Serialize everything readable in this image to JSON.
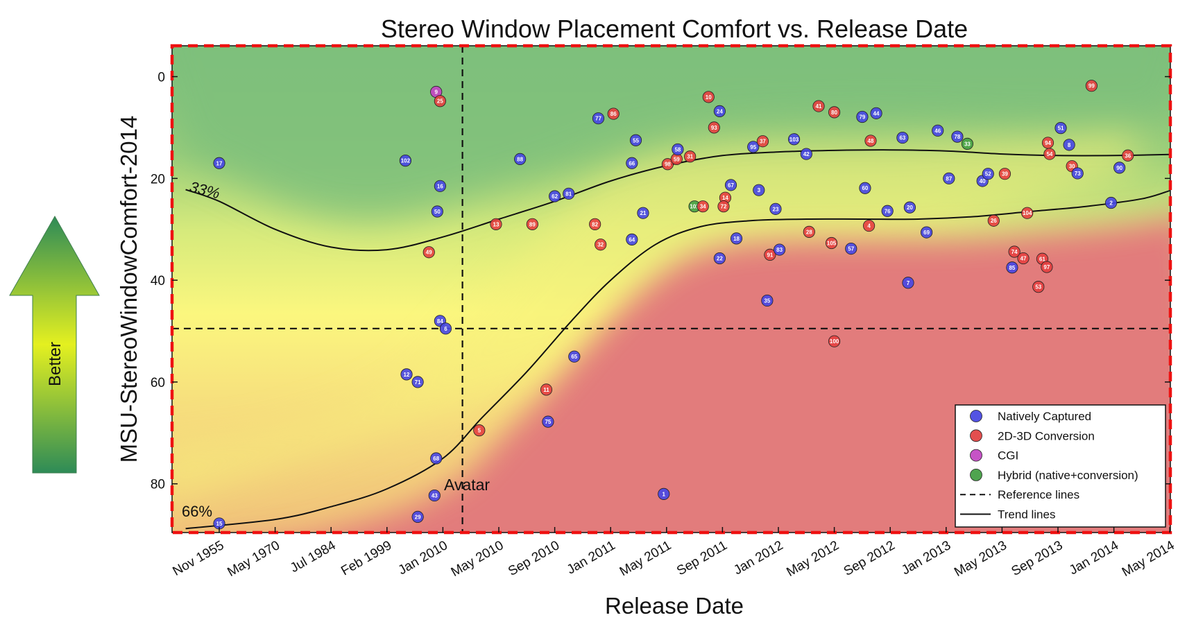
{
  "chart_data": {
    "type": "scatter",
    "title": "Stereo Window Placement Comfort vs. Release Date",
    "xlabel": "Release Date",
    "ylabel": "MSU-StereoWindowComfort-2014",
    "y_inverted": true,
    "ylim": [
      90,
      -6
    ],
    "yticks": [
      0,
      20,
      40,
      60,
      80
    ],
    "xticks": [
      "Nov 1955",
      "May 1970",
      "Jul 1984",
      "Feb 1999",
      "Jan 2010",
      "May 2010",
      "Sep 2010",
      "Jan 2011",
      "May 2011",
      "Sep 2011",
      "Jan 2012",
      "May 2012",
      "Sep 2012",
      "Jan 2013",
      "May 2013",
      "Sep 2013",
      "Jan 2014",
      "May 2014"
    ],
    "x_axis_note": "non-linear date axis; x positions given as ordinal tick index (0 = Nov 1955 ... 17 = May 2014)",
    "reference_lines": {
      "horizontal_y": 49.5,
      "vertical_x_index": 4.35,
      "vertical_label": "Avatar"
    },
    "trend_labels": {
      "upper": "33%",
      "lower": "66%"
    },
    "background_gradient": {
      "better_color": "#2e8b57",
      "mid_color": "#f5f57a",
      "worse_color": "#e07070"
    },
    "side_arrow_label": "Better",
    "legend": [
      {
        "label": "Natively Captured",
        "color": "#4040e0",
        "marker": "circle"
      },
      {
        "label": "2D-3D Conversion",
        "color": "#e03c3c",
        "marker": "circle"
      },
      {
        "label": "CGI",
        "color": "#c040c0",
        "marker": "circle"
      },
      {
        "label": "Hybrid (native+conversion)",
        "color": "#3c9a3c",
        "marker": "circle"
      },
      {
        "label": "Reference lines",
        "style": "dashed"
      },
      {
        "label": "Trend lines",
        "style": "solid"
      }
    ],
    "series_colors": {
      "native": "#4646e6",
      "conversion": "#e64040",
      "cgi": "#c442c4",
      "hybrid": "#44a044"
    },
    "trend_upper": [
      [
        -0.6,
        22.2
      ],
      [
        0,
        24.5
      ],
      [
        1,
        30
      ],
      [
        2,
        33.5
      ],
      [
        3,
        34
      ],
      [
        4,
        31.5
      ],
      [
        5,
        28
      ],
      [
        6,
        24.5
      ],
      [
        7,
        20.5
      ],
      [
        8,
        17.5
      ],
      [
        9,
        15.5
      ],
      [
        10,
        14.8
      ],
      [
        11,
        14.5
      ],
      [
        12,
        14.4
      ],
      [
        13,
        14.6
      ],
      [
        14,
        15.2
      ],
      [
        15,
        15.5
      ],
      [
        16,
        15.5
      ],
      [
        17,
        15.3
      ]
    ],
    "trend_lower": [
      [
        -0.6,
        88.8
      ],
      [
        1,
        87
      ],
      [
        2,
        84.5
      ],
      [
        3,
        81
      ],
      [
        4,
        75
      ],
      [
        4.7,
        67
      ],
      [
        5.5,
        58
      ],
      [
        6.3,
        48
      ],
      [
        7,
        40
      ],
      [
        7.8,
        33
      ],
      [
        8.6,
        29.5
      ],
      [
        9.5,
        28.3
      ],
      [
        10.5,
        28
      ],
      [
        11.5,
        28
      ],
      [
        12.5,
        28
      ],
      [
        13.5,
        27.5
      ],
      [
        14.5,
        26.5
      ],
      [
        15.5,
        25.5
      ],
      [
        16.5,
        24
      ],
      [
        17,
        22.4
      ]
    ],
    "points": [
      {
        "id": "15",
        "s": "native",
        "x": 0,
        "y": 87.8
      },
      {
        "id": "17",
        "s": "native",
        "x": 0,
        "y": 17
      },
      {
        "id": "102",
        "s": "native",
        "x": 3.33,
        "y": 16.5
      },
      {
        "id": "12",
        "s": "native",
        "x": 3.35,
        "y": 58.5
      },
      {
        "id": "71",
        "s": "native",
        "x": 3.55,
        "y": 60
      },
      {
        "id": "29",
        "s": "native",
        "x": 3.55,
        "y": 86.5
      },
      {
        "id": "9",
        "s": "cgi",
        "x": 3.88,
        "y": 3
      },
      {
        "id": "25",
        "s": "conversion",
        "x": 3.95,
        "y": 4.8
      },
      {
        "id": "16",
        "s": "native",
        "x": 3.95,
        "y": 21.5
      },
      {
        "id": "50",
        "s": "native",
        "x": 3.9,
        "y": 26.5
      },
      {
        "id": "49",
        "s": "conversion",
        "x": 3.75,
        "y": 34.5
      },
      {
        "id": "84",
        "s": "native",
        "x": 3.95,
        "y": 48
      },
      {
        "id": "6",
        "s": "native",
        "x": 4.05,
        "y": 49.5
      },
      {
        "id": "68",
        "s": "native",
        "x": 3.88,
        "y": 75
      },
      {
        "id": "43",
        "s": "native",
        "x": 3.85,
        "y": 82.3
      },
      {
        "id": "13",
        "s": "conversion",
        "x": 4.95,
        "y": 29
      },
      {
        "id": "5",
        "s": "conversion",
        "x": 4.65,
        "y": 69.5
      },
      {
        "id": "88",
        "s": "native",
        "x": 5.38,
        "y": 16.2
      },
      {
        "id": "89",
        "s": "conversion",
        "x": 5.6,
        "y": 29
      },
      {
        "id": "11",
        "s": "conversion",
        "x": 5.85,
        "y": 61.5
      },
      {
        "id": "75",
        "s": "native",
        "x": 5.88,
        "y": 67.8
      },
      {
        "id": "62",
        "s": "native",
        "x": 6.0,
        "y": 23.5
      },
      {
        "id": "81",
        "s": "native",
        "x": 6.25,
        "y": 23
      },
      {
        "id": "65",
        "s": "native",
        "x": 6.35,
        "y": 55
      },
      {
        "id": "82",
        "s": "conversion",
        "x": 6.72,
        "y": 29
      },
      {
        "id": "32",
        "s": "conversion",
        "x": 6.82,
        "y": 33
      },
      {
        "id": "77",
        "s": "native",
        "x": 6.78,
        "y": 8.2
      },
      {
        "id": "86",
        "s": "conversion",
        "x": 7.05,
        "y": 7.3
      },
      {
        "id": "55",
        "s": "native",
        "x": 7.45,
        "y": 12.5
      },
      {
        "id": "66",
        "s": "native",
        "x": 7.38,
        "y": 17
      },
      {
        "id": "21",
        "s": "native",
        "x": 7.58,
        "y": 26.8
      },
      {
        "id": "64",
        "s": "native",
        "x": 7.38,
        "y": 32
      },
      {
        "id": "1",
        "s": "native",
        "x": 7.95,
        "y": 82
      },
      {
        "id": "98",
        "s": "conversion",
        "x": 8.02,
        "y": 17.2
      },
      {
        "id": "59",
        "s": "conversion",
        "x": 8.18,
        "y": 16.2
      },
      {
        "id": "58",
        "s": "native",
        "x": 8.2,
        "y": 14.3
      },
      {
        "id": "31",
        "s": "conversion",
        "x": 8.42,
        "y": 15.7
      },
      {
        "id": "101",
        "s": "hybrid",
        "x": 8.5,
        "y": 25.5
      },
      {
        "id": "34",
        "s": "conversion",
        "x": 8.65,
        "y": 25.5
      },
      {
        "id": "10",
        "s": "conversion",
        "x": 8.75,
        "y": 4
      },
      {
        "id": "93",
        "s": "conversion",
        "x": 8.85,
        "y": 10
      },
      {
        "id": "24",
        "s": "native",
        "x": 8.95,
        "y": 6.8
      },
      {
        "id": "14",
        "s": "conversion",
        "x": 9.05,
        "y": 23.8
      },
      {
        "id": "72",
        "s": "conversion",
        "x": 9.02,
        "y": 25.5
      },
      {
        "id": "67",
        "s": "native",
        "x": 9.15,
        "y": 21.3
      },
      {
        "id": "22",
        "s": "native",
        "x": 8.95,
        "y": 35.7
      },
      {
        "id": "18",
        "s": "native",
        "x": 9.25,
        "y": 31.8
      },
      {
        "id": "95",
        "s": "native",
        "x": 9.55,
        "y": 13.8
      },
      {
        "id": "37",
        "s": "conversion",
        "x": 9.72,
        "y": 12.7
      },
      {
        "id": "3",
        "s": "native",
        "x": 9.65,
        "y": 22.3
      },
      {
        "id": "23",
        "s": "native",
        "x": 9.95,
        "y": 26
      },
      {
        "id": "91",
        "s": "conversion",
        "x": 9.85,
        "y": 35
      },
      {
        "id": "83",
        "s": "native",
        "x": 10.02,
        "y": 34
      },
      {
        "id": "35",
        "s": "native",
        "x": 9.8,
        "y": 44
      },
      {
        "id": "103",
        "s": "native",
        "x": 10.28,
        "y": 12.3
      },
      {
        "id": "42",
        "s": "native",
        "x": 10.5,
        "y": 15.2
      },
      {
        "id": "28",
        "s": "conversion",
        "x": 10.55,
        "y": 30.5
      },
      {
        "id": "41",
        "s": "conversion",
        "x": 10.72,
        "y": 5.8
      },
      {
        "id": "80",
        "s": "conversion",
        "x": 11.0,
        "y": 7
      },
      {
        "id": "105",
        "s": "conversion",
        "x": 10.95,
        "y": 32.7
      },
      {
        "id": "100",
        "s": "conversion",
        "x": 11.0,
        "y": 52
      },
      {
        "id": "57",
        "s": "native",
        "x": 11.3,
        "y": 33.8
      },
      {
        "id": "79",
        "s": "native",
        "x": 11.5,
        "y": 7.9
      },
      {
        "id": "44",
        "s": "native",
        "x": 11.75,
        "y": 7.2
      },
      {
        "id": "48",
        "s": "conversion",
        "x": 11.65,
        "y": 12.6
      },
      {
        "id": "60",
        "s": "native",
        "x": 11.55,
        "y": 21.9
      },
      {
        "id": "4",
        "s": "conversion",
        "x": 11.62,
        "y": 29.3
      },
      {
        "id": "76",
        "s": "native",
        "x": 11.95,
        "y": 26.4
      },
      {
        "id": "63",
        "s": "native",
        "x": 12.22,
        "y": 12
      },
      {
        "id": "20",
        "s": "native",
        "x": 12.35,
        "y": 25.7
      },
      {
        "id": "7",
        "s": "native",
        "x": 12.32,
        "y": 40.5
      },
      {
        "id": "69",
        "s": "native",
        "x": 12.65,
        "y": 30.6
      },
      {
        "id": "46",
        "s": "native",
        "x": 12.85,
        "y": 10.6
      },
      {
        "id": "87",
        "s": "native",
        "x": 13.05,
        "y": 20
      },
      {
        "id": "78",
        "s": "native",
        "x": 13.2,
        "y": 11.8
      },
      {
        "id": "33",
        "s": "hybrid",
        "x": 13.38,
        "y": 13.2
      },
      {
        "id": "40",
        "s": "native",
        "x": 13.65,
        "y": 20.5
      },
      {
        "id": "52",
        "s": "native",
        "x": 13.75,
        "y": 19.1
      },
      {
        "id": "26",
        "s": "conversion",
        "x": 13.85,
        "y": 28.3
      },
      {
        "id": "39",
        "s": "conversion",
        "x": 14.05,
        "y": 19.1
      },
      {
        "id": "85",
        "s": "native",
        "x": 14.18,
        "y": 37.5
      },
      {
        "id": "74",
        "s": "conversion",
        "x": 14.22,
        "y": 34.4
      },
      {
        "id": "47",
        "s": "conversion",
        "x": 14.38,
        "y": 35.7
      },
      {
        "id": "104",
        "s": "conversion",
        "x": 14.45,
        "y": 26.8
      },
      {
        "id": "53",
        "s": "conversion",
        "x": 14.65,
        "y": 41.3
      },
      {
        "id": "61",
        "s": "conversion",
        "x": 14.72,
        "y": 35.8
      },
      {
        "id": "97",
        "s": "conversion",
        "x": 14.8,
        "y": 37.4
      },
      {
        "id": "94",
        "s": "conversion",
        "x": 14.82,
        "y": 13
      },
      {
        "id": "54",
        "s": "conversion",
        "x": 14.85,
        "y": 15.2
      },
      {
        "id": "51",
        "s": "native",
        "x": 15.05,
        "y": 10.1
      },
      {
        "id": "8",
        "s": "native",
        "x": 15.2,
        "y": 13.4
      },
      {
        "id": "30",
        "s": "conversion",
        "x": 15.25,
        "y": 17.6
      },
      {
        "id": "73",
        "s": "native",
        "x": 15.35,
        "y": 19
      },
      {
        "id": "99",
        "s": "conversion",
        "x": 15.6,
        "y": 1.8
      },
      {
        "id": "2",
        "s": "native",
        "x": 15.95,
        "y": 24.8
      },
      {
        "id": "90",
        "s": "native",
        "x": 16.1,
        "y": 17.9
      },
      {
        "id": "36",
        "s": "conversion",
        "x": 16.25,
        "y": 15.5
      }
    ]
  }
}
